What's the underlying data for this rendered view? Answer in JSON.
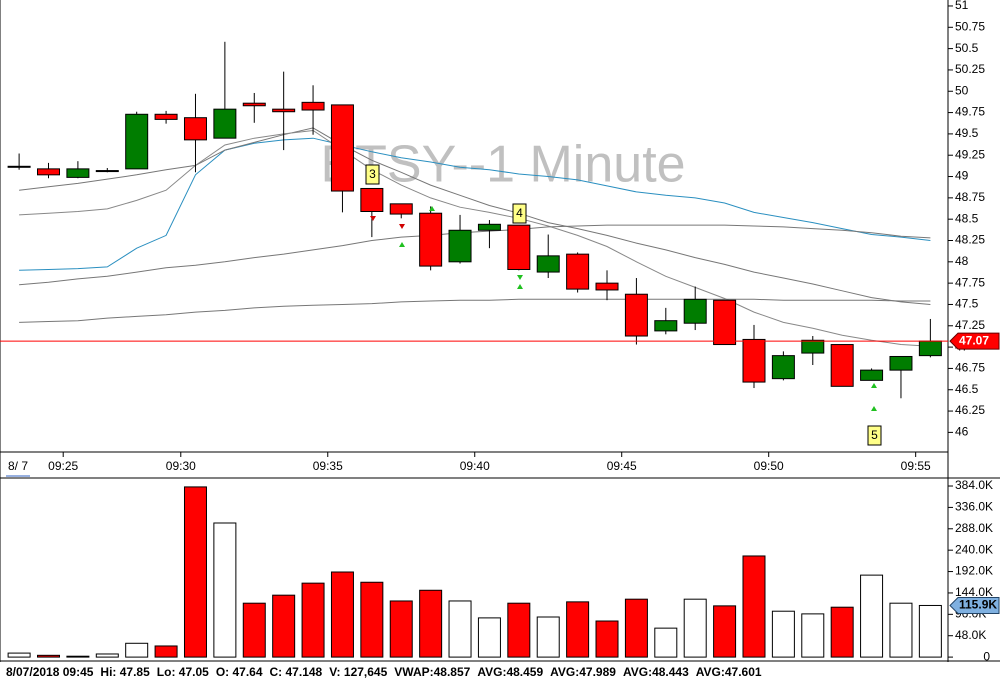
{
  "chart_data": {
    "type": "candlestick",
    "title": "ETSY--1 Minute",
    "date_label": "8/ 7",
    "xlim": [
      -0.65,
      31.6
    ],
    "xticks": [
      {
        "value": 1.5,
        "label": "09:25"
      },
      {
        "value": 5.5,
        "label": "09:30"
      },
      {
        "value": 10.5,
        "label": "09:35"
      },
      {
        "value": 15.5,
        "label": "09:40"
      },
      {
        "value": 20.5,
        "label": "09:45"
      },
      {
        "value": 25.5,
        "label": "09:50"
      },
      {
        "value": 30.5,
        "label": "09:55"
      }
    ],
    "ylim": [
      45.77,
      51.07
    ],
    "yticks": [
      51,
      50.75,
      50.5,
      50.25,
      50,
      49.75,
      49.5,
      49.25,
      49,
      48.75,
      48.5,
      48.25,
      48,
      47.75,
      47.5,
      47.25,
      47,
      46.75,
      46.5,
      46.25,
      46
    ],
    "up_color": "#007d00",
    "down_color": "#ff0000",
    "open": [
      49.12,
      49.09,
      48.99,
      49.07,
      49.09,
      49.73,
      49.69,
      49.45,
      49.86,
      49.79,
      49.87,
      49.84,
      48.86,
      48.68,
      48.57,
      48.0,
      48.37,
      48.43,
      47.88,
      48.09,
      47.75,
      47.62,
      47.19,
      47.28,
      47.55,
      47.09,
      46.63,
      46.93,
      47.03,
      46.61,
      46.73,
      46.9
    ],
    "high": [
      49.27,
      49.16,
      49.18,
      49.1,
      49.76,
      49.77,
      49.97,
      50.58,
      49.98,
      50.23,
      50.07,
      49.84,
      48.86,
      48.68,
      48.65,
      48.55,
      48.49,
      48.43,
      48.32,
      48.11,
      47.9,
      47.81,
      47.46,
      47.71,
      47.55,
      47.26,
      46.95,
      47.13,
      47.03,
      46.75,
      46.89,
      47.33
    ],
    "low": [
      49.08,
      48.98,
      48.98,
      49.05,
      49.09,
      49.62,
      49.05,
      49.45,
      49.63,
      49.31,
      49.49,
      48.58,
      48.29,
      48.51,
      47.9,
      47.98,
      48.16,
      47.9,
      47.81,
      47.64,
      47.55,
      47.03,
      47.15,
      47.2,
      47.03,
      46.52,
      46.61,
      46.79,
      46.54,
      46.61,
      46.4,
      46.88
    ],
    "close": [
      49.12,
      49.02,
      49.09,
      49.07,
      49.73,
      49.67,
      49.43,
      49.79,
      49.83,
      49.76,
      49.78,
      48.83,
      48.59,
      48.56,
      47.95,
      48.37,
      48.44,
      47.91,
      48.07,
      47.68,
      47.67,
      47.13,
      47.31,
      47.56,
      47.03,
      46.59,
      46.9,
      47.08,
      46.54,
      46.73,
      46.89,
      47.07
    ],
    "lines": [
      {
        "color": "#2a8fc0",
        "values": [
          47.9,
          47.91,
          47.92,
          47.94,
          48.16,
          48.31,
          49.02,
          49.31,
          49.39,
          49.43,
          49.45,
          49.37,
          49.29,
          49.22,
          49.17,
          49.11,
          49.08,
          49.03,
          49.0,
          48.96,
          48.89,
          48.82,
          48.78,
          48.75,
          48.69,
          48.58,
          48.52,
          48.46,
          48.39,
          48.32,
          48.29,
          48.25
        ]
      },
      {
        "color": "#777777",
        "values": [
          48.84,
          48.88,
          48.92,
          48.97,
          49.02,
          49.08,
          49.13,
          49.31,
          49.4,
          49.49,
          49.57,
          49.37,
          49.19,
          49.05,
          48.9,
          48.78,
          48.66,
          48.57,
          48.46,
          48.39,
          48.31,
          48.22,
          48.14,
          48.05,
          47.97,
          47.88,
          47.81,
          47.74,
          47.66,
          47.58,
          47.53,
          47.5
        ]
      },
      {
        "color": "#888888",
        "values": [
          48.55,
          48.57,
          48.59,
          48.62,
          48.72,
          48.84,
          49.13,
          49.37,
          49.45,
          49.5,
          49.54,
          49.31,
          49.08,
          48.9,
          48.75,
          48.64,
          48.58,
          48.51,
          48.42,
          48.31,
          48.18,
          48.0,
          47.83,
          47.7,
          47.57,
          47.41,
          47.29,
          47.22,
          47.14,
          47.08,
          47.03,
          47.01
        ]
      },
      {
        "color": "#777777",
        "values": [
          47.73,
          47.76,
          47.8,
          47.83,
          47.88,
          47.93,
          47.96,
          48.0,
          48.05,
          48.09,
          48.14,
          48.19,
          48.25,
          48.29,
          48.31,
          48.34,
          48.36,
          48.38,
          48.41,
          48.42,
          48.43,
          48.43,
          48.43,
          48.43,
          48.43,
          48.42,
          48.41,
          48.39,
          48.37,
          48.34,
          48.3,
          48.28
        ]
      },
      {
        "color": "#777777",
        "values": [
          47.29,
          47.3,
          47.31,
          47.34,
          47.36,
          47.38,
          47.41,
          47.43,
          47.46,
          47.48,
          47.49,
          47.5,
          47.51,
          47.53,
          47.54,
          47.55,
          47.55,
          47.56,
          47.56,
          47.56,
          47.56,
          47.56,
          47.56,
          47.56,
          47.56,
          47.56,
          47.55,
          47.55,
          47.55,
          47.55,
          47.54,
          47.54
        ]
      }
    ],
    "last_price": 47.07,
    "last_price_color": "#ff0000",
    "annotations": [
      "3",
      "4",
      "5"
    ],
    "volume": {
      "values": [
        9,
        4,
        2,
        7,
        31,
        25,
        382,
        301,
        121,
        139,
        166,
        191,
        168,
        126,
        150,
        126,
        88,
        121,
        90,
        124,
        81,
        130,
        65,
        130,
        115,
        227,
        103,
        97,
        112,
        184,
        121,
        115.9
      ],
      "ylim": [
        -11,
        402
      ],
      "yticks": [
        {
          "value": 384,
          "label": "384.0K"
        },
        {
          "value": 336,
          "label": "336.0K"
        },
        {
          "value": 288,
          "label": "288.0K"
        },
        {
          "value": 240,
          "label": "240.0K"
        },
        {
          "value": 192,
          "label": "192.0K"
        },
        {
          "value": 144,
          "label": "144.0K"
        },
        {
          "value": 96,
          "label": "96.0K"
        },
        {
          "value": 48,
          "label": "48.0K"
        },
        0
      ],
      "last": {
        "value": 115.9,
        "label": "115.9K"
      },
      "last_color": "#7fb0e0"
    },
    "status_bar": [
      "8/07/2018 09:45",
      "Hi: 47.85",
      "Lo: 47.05",
      "O: 47.64",
      "C: 47.148",
      "V: 127,645",
      "VWAP:48.857",
      "AVG:48.459",
      "AVG:47.989",
      "AVG:48.443",
      "AVG:47.601"
    ]
  }
}
